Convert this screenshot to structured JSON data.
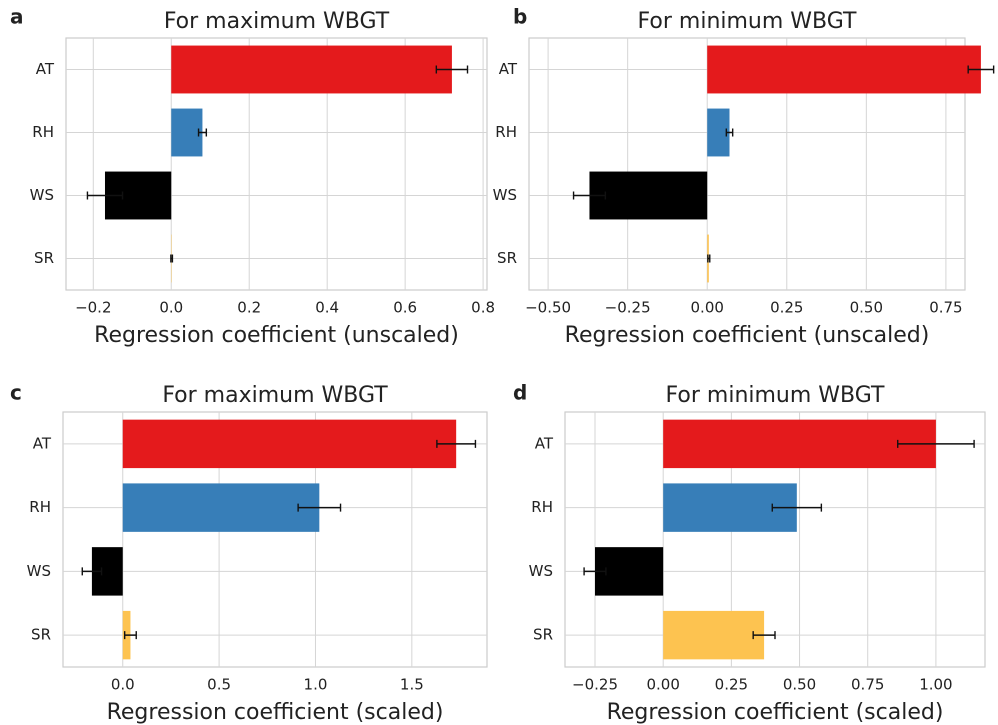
{
  "chart_data": [
    {
      "type": "bar",
      "panel_label": "a",
      "title": "For maximum WBGT",
      "xlabel": "Regression coefficient (unscaled)",
      "categories": [
        "AT",
        "RH",
        "WS",
        "SR"
      ],
      "values": [
        0.72,
        0.08,
        -0.17,
        0.001
      ],
      "errors": [
        0.04,
        0.01,
        0.045,
        0.002
      ],
      "colors": [
        "#e41a1c",
        "#377eb8",
        "#000000",
        "#fdc350"
      ],
      "xlim": [
        -0.27,
        0.81
      ],
      "xticks": [
        {
          "value": -0.2,
          "label": "−0.2"
        },
        {
          "value": 0,
          "label": "0.0"
        },
        0.2,
        0.4,
        0.6,
        0.8
      ],
      "grid": true
    },
    {
      "type": "bar",
      "panel_label": "b",
      "title": "For minimum WBGT",
      "xlabel": "Regression coefficient (unscaled)",
      "categories": [
        "AT",
        "RH",
        "WS",
        "SR"
      ],
      "values": [
        0.86,
        0.07,
        -0.37,
        0.005
      ],
      "errors": [
        0.04,
        0.01,
        0.05,
        0.003
      ],
      "colors": [
        "#e41a1c",
        "#377eb8",
        "#000000",
        "#fdc350"
      ],
      "xlim": [
        -0.56,
        0.81
      ],
      "xticks": [
        {
          "value": -0.5,
          "label": "−0.50"
        },
        {
          "value": -0.25,
          "label": "−0.25"
        },
        {
          "value": 0,
          "label": "0.00"
        },
        0.25,
        {
          "value": 0.5,
          "label": "0.50"
        },
        0.75
      ],
      "grid": true
    },
    {
      "type": "bar",
      "panel_label": "c",
      "title": "For maximum WBGT",
      "xlabel": "Regression coefficient (scaled)",
      "categories": [
        "AT",
        "RH",
        "WS",
        "SR"
      ],
      "values": [
        1.73,
        1.02,
        -0.16,
        0.04
      ],
      "errors": [
        0.1,
        0.11,
        0.05,
        0.03
      ],
      "colors": [
        "#e41a1c",
        "#377eb8",
        "#000000",
        "#fdc350"
      ],
      "xlim": [
        -0.31,
        1.89
      ],
      "xticks": [
        {
          "value": 0,
          "label": "0.0"
        },
        0.5,
        {
          "value": 1,
          "label": "1.0"
        },
        1.5
      ],
      "grid": true
    },
    {
      "type": "bar",
      "panel_label": "d",
      "title": "For minimum WBGT",
      "xlabel": "Regression coefficient (scaled)",
      "categories": [
        "AT",
        "RH",
        "WS",
        "SR"
      ],
      "values": [
        1.0,
        0.49,
        -0.25,
        0.37
      ],
      "errors": [
        0.14,
        0.09,
        0.04,
        0.04
      ],
      "colors": [
        "#e41a1c",
        "#377eb8",
        "#000000",
        "#fdc350"
      ],
      "xlim": [
        -0.36,
        1.18
      ],
      "xticks": [
        {
          "value": -0.25,
          "label": "−0.25"
        },
        {
          "value": 0,
          "label": "0.00"
        },
        0.25,
        {
          "value": 0.5,
          "label": "0.50"
        },
        0.75,
        {
          "value": 1,
          "label": "1.00"
        }
      ],
      "grid": true
    }
  ]
}
